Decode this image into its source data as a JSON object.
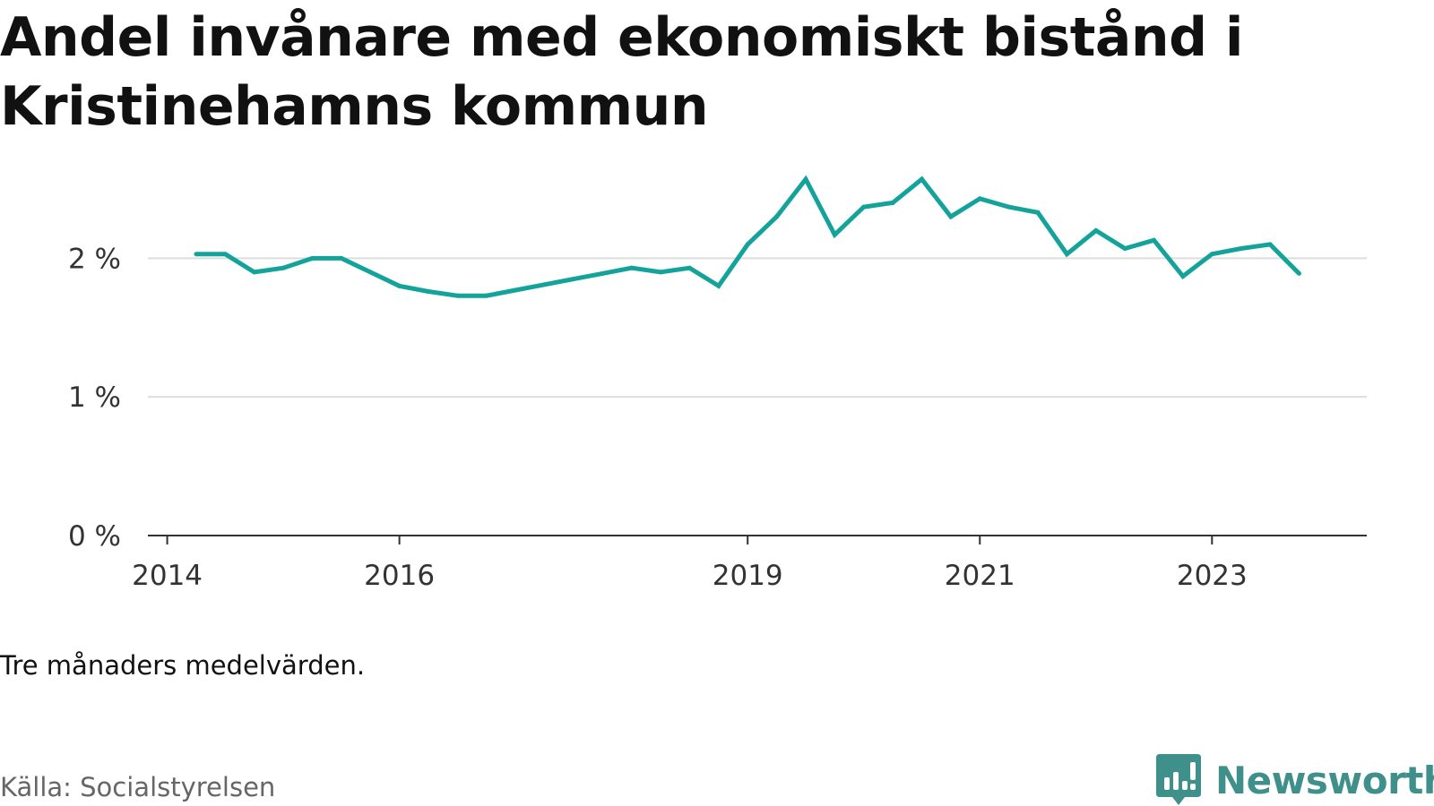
{
  "title": "Andel invånare med ekonomiskt bistånd i Kristinehamns kommun",
  "note": "Tre månaders medelvärden.",
  "source": "Källa: Socialstyrelsen",
  "brand": {
    "name": "Newsworthy",
    "icon": "newsworthy-logo-icon"
  },
  "colors": {
    "line": "#14a39a",
    "grid": "#dddddd",
    "axis": "#333333",
    "brand": "#3f8f8a"
  },
  "chart_data": {
    "type": "line",
    "title": "Andel invånare med ekonomiskt bistånd i Kristinehamns kommun",
    "ylim": [
      0,
      2.7
    ],
    "yticks": [
      0,
      1,
      2
    ],
    "ytick_labels": [
      "0 %",
      "1 %",
      "2 %"
    ],
    "xtick_labels": [
      "2014",
      "2016",
      "2019",
      "2021",
      "2023"
    ],
    "xticks": [
      "2014-01",
      "2016-01",
      "2019-01",
      "2021-01",
      "2023-01"
    ],
    "xlim": [
      "2013-11",
      "2024-05"
    ],
    "grid": "horizontal",
    "series": [
      {
        "x": [
          "2014-04",
          "2014-07",
          "2014-10",
          "2015-01",
          "2015-04",
          "2015-07",
          "2015-10",
          "2016-01",
          "2016-04",
          "2016-07",
          "2016-10",
          "2017-01",
          "2017-04",
          "2017-07",
          "2017-10",
          "2018-01",
          "2018-04",
          "2018-07",
          "2018-10",
          "2019-01",
          "2019-04",
          "2019-07",
          "2019-10",
          "2020-01",
          "2020-04",
          "2020-07",
          "2020-10",
          "2021-01",
          "2021-04",
          "2021-07",
          "2021-10",
          "2022-01",
          "2022-04",
          "2022-07",
          "2022-10",
          "2023-01",
          "2023-04",
          "2023-07",
          "2023-10"
        ],
        "values": [
          2.03,
          2.03,
          1.9,
          1.93,
          2.0,
          2.0,
          1.9,
          1.8,
          1.76,
          1.73,
          1.73,
          1.77,
          1.81,
          1.85,
          1.89,
          1.93,
          1.9,
          1.93,
          1.8,
          2.1,
          2.3,
          2.57,
          2.17,
          2.37,
          2.4,
          2.57,
          2.3,
          2.43,
          2.37,
          2.33,
          2.03,
          2.2,
          2.07,
          2.13,
          1.87,
          2.03,
          2.07,
          2.1,
          1.89
        ]
      }
    ]
  }
}
